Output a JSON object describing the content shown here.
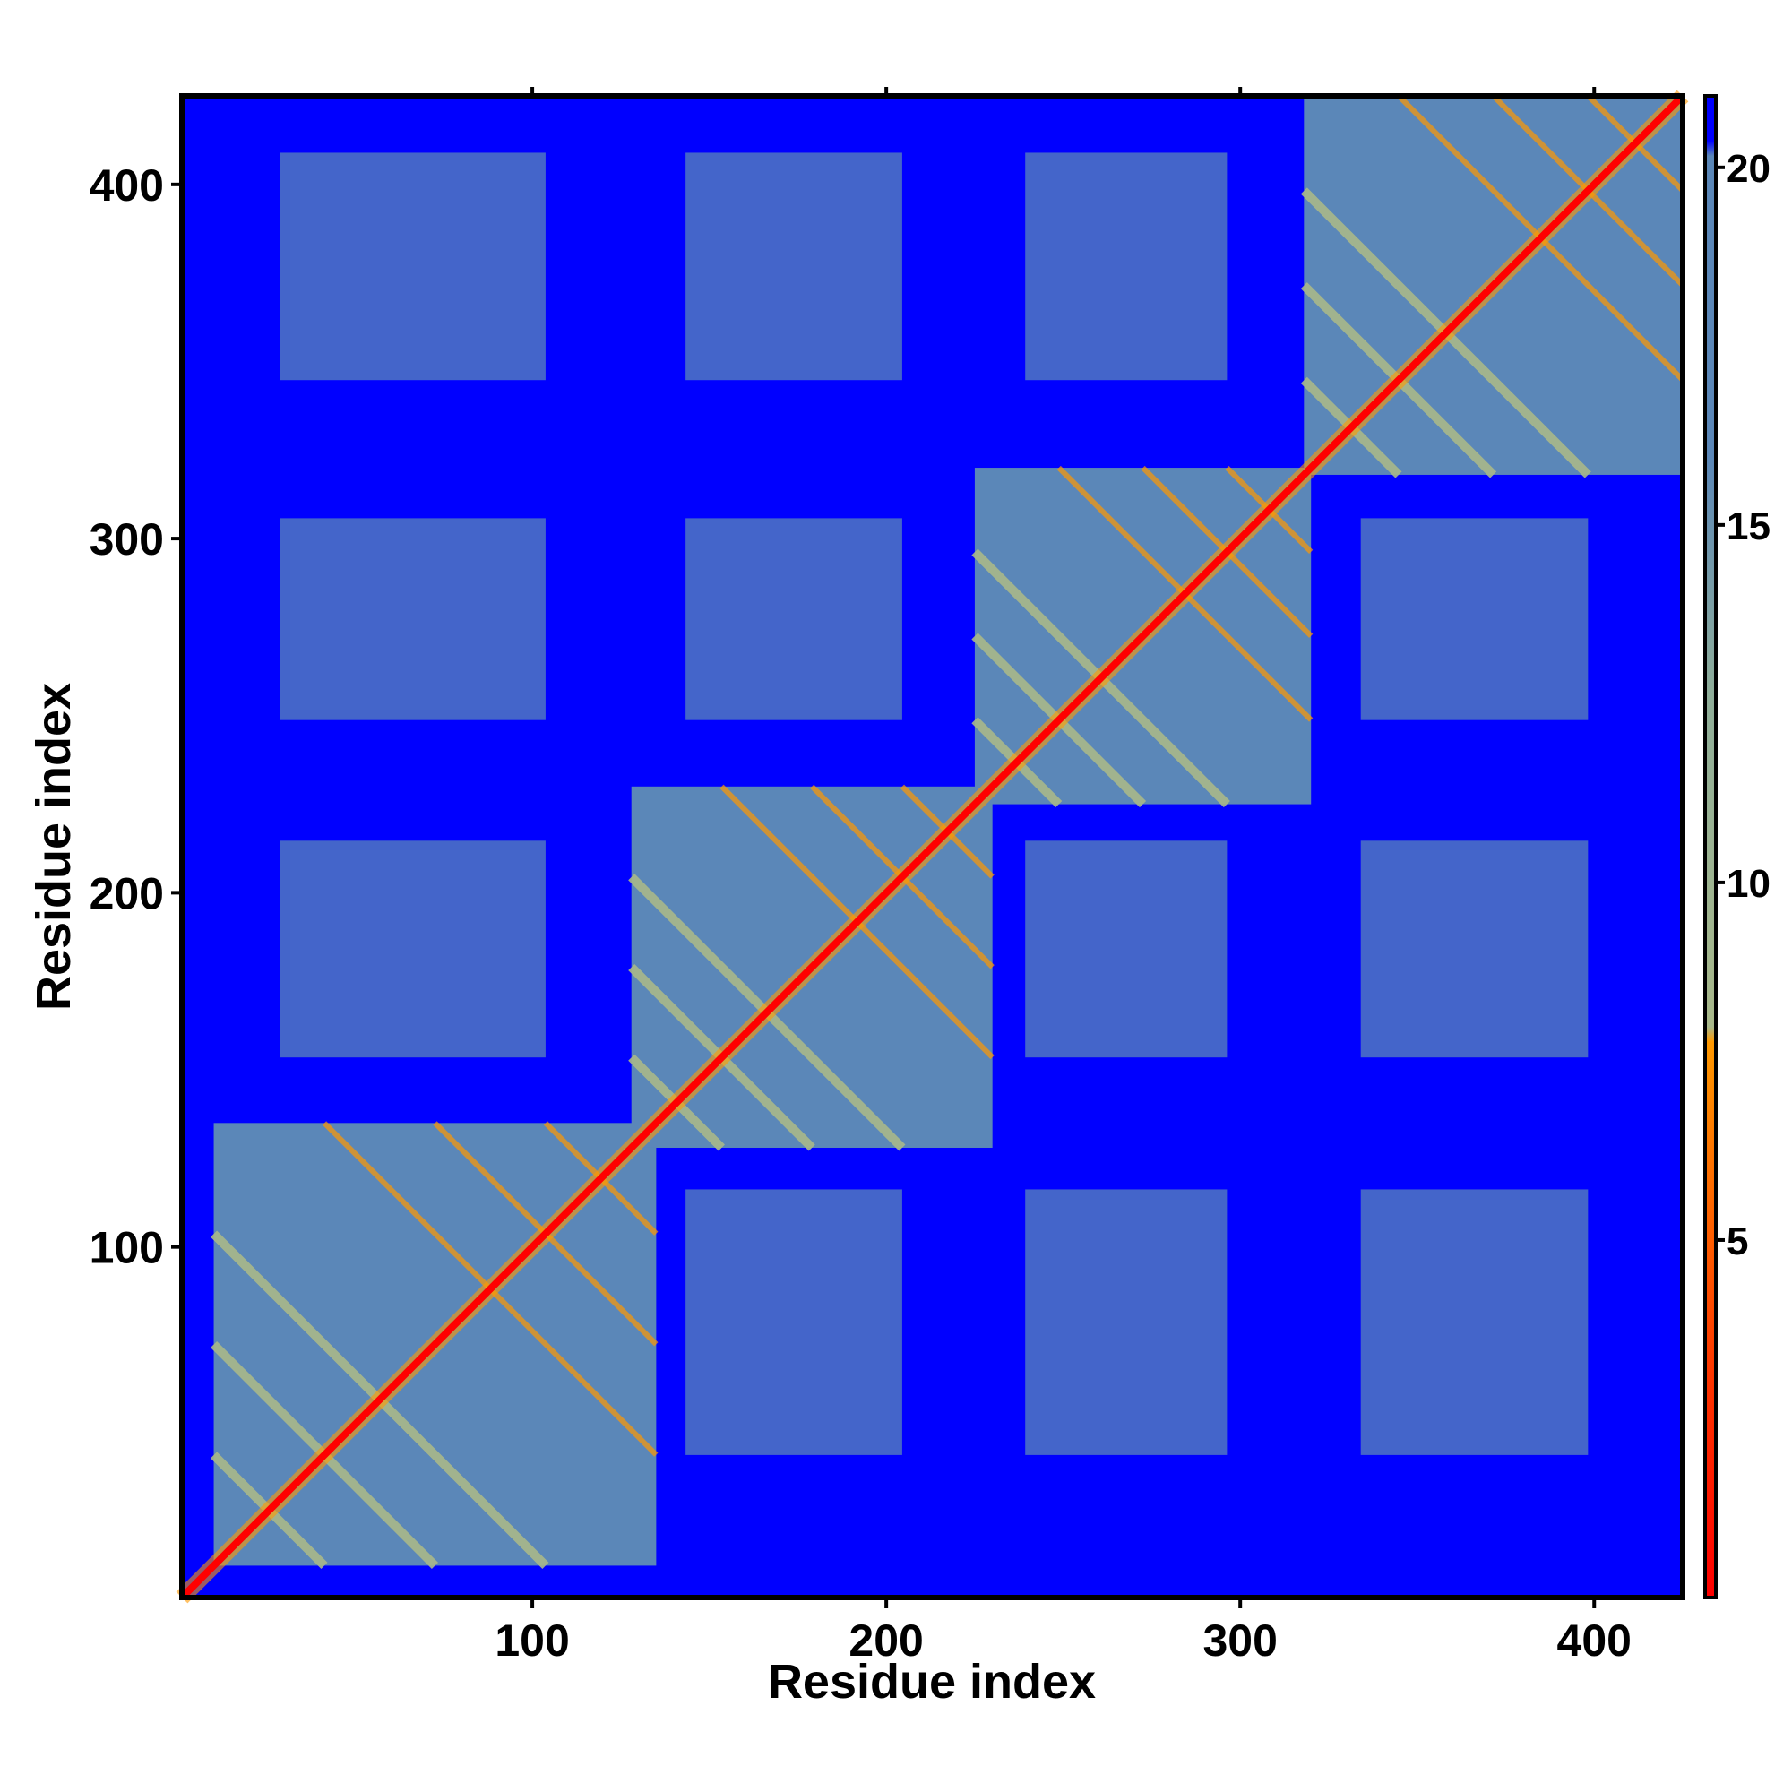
{
  "chart_data": {
    "type": "heatmap",
    "title": "",
    "xlabel": "Residue index",
    "ylabel": "Residue index",
    "xlim": [
      1,
      425
    ],
    "ylim": [
      1,
      425
    ],
    "x_ticks": [
      100,
      200,
      300,
      400
    ],
    "y_ticks": [
      100,
      200,
      300,
      400
    ],
    "colorbar": {
      "range": [
        0,
        21
      ],
      "ticks": [
        5,
        10,
        15,
        20
      ],
      "colors": {
        "min": "#ff0000",
        "mid_low": "#ff9900",
        "mid": "#a8b88a",
        "high": "#5b87b8",
        "max": "#0000ff"
      }
    },
    "matrix_description": "symmetric residue-residue distance map",
    "domains": [
      {
        "start": 10,
        "end": 135
      },
      {
        "start": 128,
        "end": 230
      },
      {
        "start": 225,
        "end": 320
      },
      {
        "start": 318,
        "end": 425
      }
    ],
    "background_color": "#0000ff",
    "diagonal_color": "#ff0000"
  }
}
